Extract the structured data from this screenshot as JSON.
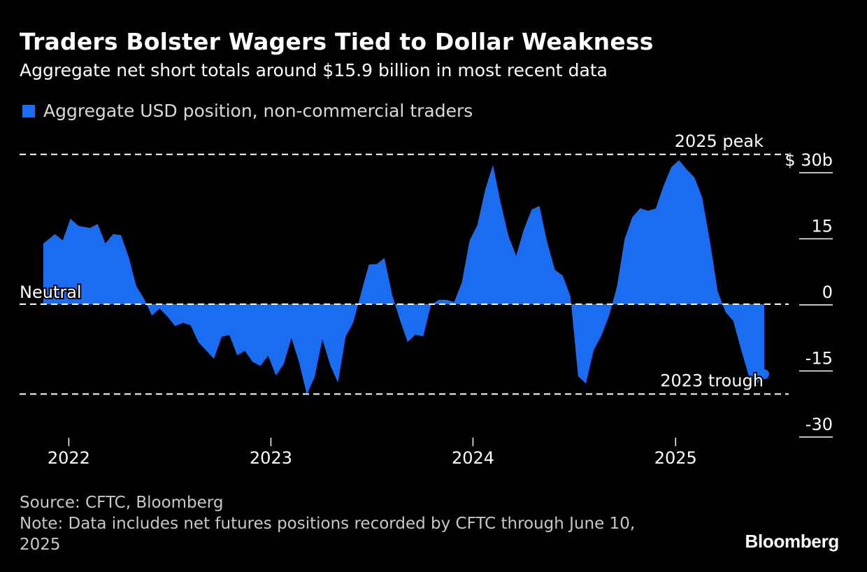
{
  "title": "Traders Bolster Wagers Tied to Dollar Weakness",
  "subtitle": "Aggregate net short totals around $15.9 billion in most recent data",
  "legend": {
    "label": "Aggregate USD position, non-commercial traders",
    "color": "#1a6cf0"
  },
  "footer": {
    "source": "Source: CFTC, Bloomberg",
    "note": "Note: Data includes net futures positions recorded by CFTC through June 10, 2025"
  },
  "logo": "Bloomberg",
  "chart_data": {
    "type": "area",
    "title": "Traders Bolster Wagers Tied to Dollar Weakness",
    "ylim": [
      -30,
      30
    ],
    "y_ticks": [
      {
        "value": 30,
        "label": "$ 30b"
      },
      {
        "value": 15,
        "label": "15"
      },
      {
        "value": 0,
        "label": "0"
      },
      {
        "value": -15,
        "label": "-15"
      },
      {
        "value": -30,
        "label": "-30"
      }
    ],
    "x_ticks": [
      "2022",
      "2023",
      "2024",
      "2025"
    ],
    "x_range": [
      "2021-11-16",
      "2025-06-10"
    ],
    "grid": false,
    "legend_position": "top-left",
    "reference_lines": [
      {
        "value": 34,
        "label": "2025 peak"
      },
      {
        "value": 0,
        "label": "Neutral"
      },
      {
        "value": -20.4,
        "label": "2023 trough"
      }
    ],
    "series": [
      {
        "name": "Aggregate USD position, non-commercial traders",
        "x": [
          "2021-11-16",
          "2021-12-07",
          "2021-12-21",
          "2022-01-04",
          "2022-01-18",
          "2022-02-08",
          "2022-02-22",
          "2022-03-08",
          "2022-03-22",
          "2022-04-05",
          "2022-04-19",
          "2022-05-03",
          "2022-05-17",
          "2022-05-31",
          "2022-06-14",
          "2022-06-28",
          "2022-07-12",
          "2022-07-26",
          "2022-08-09",
          "2022-08-23",
          "2022-09-06",
          "2022-09-20",
          "2022-10-04",
          "2022-10-18",
          "2022-11-01",
          "2022-11-15",
          "2022-11-29",
          "2022-12-13",
          "2022-12-27",
          "2023-01-10",
          "2023-01-24",
          "2023-02-07",
          "2023-02-21",
          "2023-03-07",
          "2023-03-21",
          "2023-04-04",
          "2023-04-18",
          "2023-05-02",
          "2023-05-16",
          "2023-05-30",
          "2023-06-13",
          "2023-06-27",
          "2023-07-11",
          "2023-07-25",
          "2023-08-08",
          "2023-08-22",
          "2023-09-05",
          "2023-09-19",
          "2023-10-03",
          "2023-10-17",
          "2023-10-31",
          "2023-11-14",
          "2023-11-28",
          "2023-12-12",
          "2023-12-26",
          "2024-01-09",
          "2024-01-23",
          "2024-02-06",
          "2024-02-20",
          "2024-03-05",
          "2024-03-19",
          "2024-04-02",
          "2024-04-16",
          "2024-04-30",
          "2024-05-14",
          "2024-05-28",
          "2024-06-11",
          "2024-06-25",
          "2024-07-09",
          "2024-07-23",
          "2024-08-06",
          "2024-08-20",
          "2024-09-03",
          "2024-09-17",
          "2024-10-01",
          "2024-10-15",
          "2024-10-29",
          "2024-11-12",
          "2024-11-26",
          "2024-12-10",
          "2024-12-24",
          "2025-01-07",
          "2025-01-21",
          "2025-02-04",
          "2025-02-18",
          "2025-03-04",
          "2025-03-18",
          "2025-04-01",
          "2025-04-15",
          "2025-04-29",
          "2025-05-13",
          "2025-05-27",
          "2025-06-10"
        ],
        "values": [
          13.8,
          15.9,
          14.5,
          19.4,
          17.8,
          17.3,
          18.2,
          13.8,
          15.9,
          15.7,
          10.8,
          4.1,
          1.2,
          -2.6,
          -1.0,
          -2.8,
          -5.0,
          -4.2,
          -4.8,
          -8.6,
          -10.5,
          -12.4,
          -7.4,
          -7.0,
          -11.6,
          -10.6,
          -13.1,
          -14.0,
          -11.7,
          -16.2,
          -13.6,
          -7.7,
          -13.2,
          -20.5,
          -16.5,
          -8.0,
          -13.8,
          -17.8,
          -7.3,
          -4.1,
          2.6,
          9.0,
          9.1,
          10.5,
          2.1,
          -3.6,
          -8.6,
          -6.9,
          -7.3,
          -0.2,
          1.0,
          1.0,
          0.5,
          5.0,
          14.5,
          18.0,
          26.0,
          31.6,
          23.0,
          15.5,
          11.0,
          17.0,
          21.5,
          22.3,
          14.0,
          7.8,
          6.5,
          1.8,
          -16.4,
          -18.0,
          -10.4,
          -7.1,
          -2.5,
          4.0,
          14.9,
          19.8,
          21.8,
          21.2,
          21.7,
          26.8,
          31.1,
          32.7,
          30.6,
          28.8,
          24.2,
          14.2,
          2.9,
          -1.8,
          -3.8,
          -10.2,
          -16.2,
          -18.3,
          -15.9
        ]
      }
    ]
  }
}
